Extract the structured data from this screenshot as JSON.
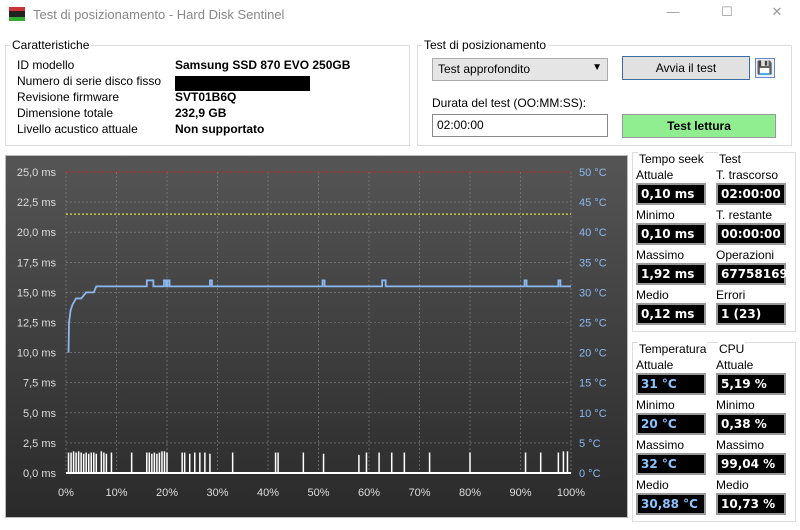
{
  "window": {
    "title": "Test di posizionamento - Hard Disk Sentinel",
    "minimize": "—",
    "maximize": "☐",
    "close": "✕"
  },
  "characteristics": {
    "legend": "Caratteristiche",
    "rows": [
      {
        "label": "ID modello",
        "value": "Samsung SSD 870 EVO 250GB"
      },
      {
        "label": "Numero di serie disco fisso",
        "value": ""
      },
      {
        "label": "Revisione firmware",
        "value": "SVT01B6Q"
      },
      {
        "label": "Dimensione totale",
        "value": "232,9 GB"
      },
      {
        "label": "Livello acustico attuale",
        "value": "Non supportato"
      }
    ]
  },
  "test": {
    "legend": "Test di posizionamento",
    "mode": "Test approfondito",
    "start_label": "Avvia il test",
    "duration_label": "Durata del test (OO:MM:SS):",
    "duration": "02:00:00",
    "read_test_label": "Test lettura",
    "read_test_color": "#90ee90"
  },
  "seek": {
    "legend": "Tempo seek",
    "items": [
      {
        "label": "Attuale",
        "value": "0,10 ms"
      },
      {
        "label": "Minimo",
        "value": "0,10 ms"
      },
      {
        "label": "Massimo",
        "value": "1,92 ms"
      },
      {
        "label": "Medio",
        "value": "0,12 ms"
      }
    ]
  },
  "testinfo": {
    "legend": "Test",
    "items": [
      {
        "label": "T. trascorso",
        "value": "02:00:00"
      },
      {
        "label": "T. restante",
        "value": "00:00:00"
      },
      {
        "label": "Operazioni",
        "value": "67758169"
      },
      {
        "label": "Errori",
        "value": "1 (23)"
      }
    ]
  },
  "temperature": {
    "legend": "Temperatura",
    "items": [
      {
        "label": "Attuale",
        "value": "31 °C"
      },
      {
        "label": "Minimo",
        "value": "20 °C"
      },
      {
        "label": "Massimo",
        "value": "32 °C"
      },
      {
        "label": "Medio",
        "value": "30,88 °C"
      }
    ]
  },
  "cpu": {
    "legend": "CPU",
    "items": [
      {
        "label": "Attuale",
        "value": "5,19 %"
      },
      {
        "label": "Minimo",
        "value": "0,38 %"
      },
      {
        "label": "Massimo",
        "value": "99,04 %"
      },
      {
        "label": "Medio",
        "value": "10,73 %"
      }
    ]
  },
  "chart_data": {
    "type": "line",
    "x_ticks": [
      "0%",
      "10%",
      "20%",
      "30%",
      "40%",
      "50%",
      "60%",
      "70%",
      "80%",
      "90%",
      "100%"
    ],
    "y_left_ticks": [
      "0,0 ms",
      "2,5 ms",
      "5,0 ms",
      "7,5 ms",
      "10,0 ms",
      "12,5 ms",
      "15,0 ms",
      "17,5 ms",
      "20,0 ms",
      "22,5 ms",
      "25,0 ms"
    ],
    "y_right_ticks": [
      "0 °C",
      "5 °C",
      "10 °C",
      "15 °C",
      "20 °C",
      "25 °C",
      "30 °C",
      "35 °C",
      "40 °C",
      "45 °C",
      "50 °C"
    ],
    "xlim": [
      0,
      100
    ],
    "ylim_left": [
      0,
      25
    ],
    "ylim_right": [
      0,
      50
    ],
    "grid": true,
    "thresholds": [
      {
        "value_c": 50,
        "color": "#b03030"
      },
      {
        "value_c": 43,
        "color": "#e0e040"
      }
    ],
    "temperature": {
      "color": "#8cb8f0",
      "points": [
        [
          0.5,
          20
        ],
        [
          0.6,
          25
        ],
        [
          0.9,
          27
        ],
        [
          1.3,
          28
        ],
        [
          2,
          29
        ],
        [
          3,
          29
        ],
        [
          4,
          30
        ],
        [
          5.5,
          30
        ],
        [
          6,
          31
        ],
        [
          16,
          31
        ],
        [
          16,
          32
        ],
        [
          17.3,
          32
        ],
        [
          17.3,
          31
        ],
        [
          19.4,
          31
        ],
        [
          19.4,
          32
        ],
        [
          19.8,
          32
        ],
        [
          19.8,
          31
        ],
        [
          20.1,
          31
        ],
        [
          20.1,
          32
        ],
        [
          20.5,
          32
        ],
        [
          20.5,
          31
        ],
        [
          28.5,
          31
        ],
        [
          28.5,
          32
        ],
        [
          28.9,
          32
        ],
        [
          28.9,
          31
        ],
        [
          50.8,
          31
        ],
        [
          50.8,
          32
        ],
        [
          51.2,
          32
        ],
        [
          51.2,
          31
        ],
        [
          62.6,
          31
        ],
        [
          62.6,
          32
        ],
        [
          63.3,
          32
        ],
        [
          63.3,
          31
        ],
        [
          90.8,
          31
        ],
        [
          90.8,
          32
        ],
        [
          91.2,
          32
        ],
        [
          91.2,
          31
        ],
        [
          97.5,
          31
        ],
        [
          97.5,
          32
        ],
        [
          97.9,
          32
        ],
        [
          97.9,
          31
        ],
        [
          100,
          31
        ]
      ]
    },
    "seek_ms": {
      "color": "#ffffff",
      "spikes": [
        [
          0.5,
          1.7
        ],
        [
          1,
          1.7
        ],
        [
          1.5,
          1.8
        ],
        [
          2,
          1.7
        ],
        [
          2.5,
          1.8
        ],
        [
          3,
          1.7
        ],
        [
          3.5,
          1.6
        ],
        [
          4,
          1.7
        ],
        [
          4.5,
          1.6
        ],
        [
          5,
          1.7
        ],
        [
          5.5,
          1.7
        ],
        [
          6,
          1.6
        ],
        [
          7,
          1.8
        ],
        [
          7.5,
          1.7
        ],
        [
          8,
          1.6
        ],
        [
          9,
          1.7
        ],
        [
          13,
          1.7
        ],
        [
          16,
          1.7
        ],
        [
          16.5,
          1.7
        ],
        [
          17,
          1.6
        ],
        [
          17.5,
          1.7
        ],
        [
          18,
          1.6
        ],
        [
          18.5,
          1.7
        ],
        [
          19,
          1.8
        ],
        [
          19.5,
          1.8
        ],
        [
          20,
          1.7
        ],
        [
          23,
          1.7
        ],
        [
          23.5,
          1.7
        ],
        [
          24.5,
          1.6
        ],
        [
          25.5,
          1.7
        ],
        [
          26.5,
          1.7
        ],
        [
          27.5,
          1.7
        ],
        [
          28.5,
          1.6
        ],
        [
          33,
          1.7
        ],
        [
          41.5,
          1.7
        ],
        [
          42,
          1.7
        ],
        [
          47,
          1.7
        ],
        [
          51,
          1.6
        ],
        [
          58,
          1.5
        ],
        [
          59.5,
          1.7
        ],
        [
          62,
          1.7
        ],
        [
          64.5,
          1.7
        ],
        [
          67,
          1.7
        ],
        [
          72,
          1.7
        ],
        [
          80,
          1.7
        ],
        [
          91,
          1.7
        ],
        [
          94,
          1.7
        ],
        [
          97.5,
          1.7
        ],
        [
          98.5,
          1.8
        ],
        [
          99.3,
          1.8
        ]
      ]
    }
  }
}
